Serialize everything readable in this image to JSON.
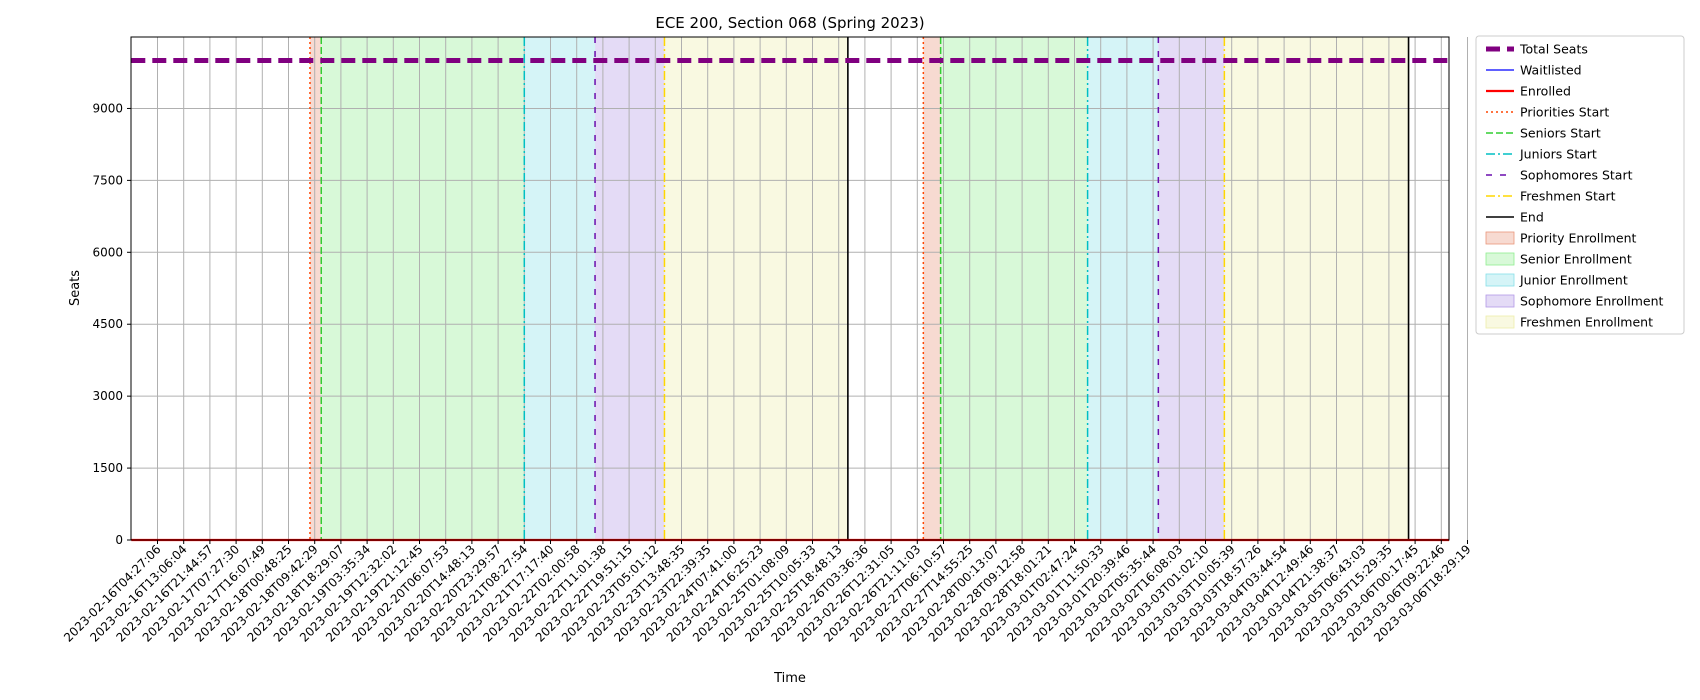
{
  "chart_data": {
    "type": "line",
    "title": "ECE 200, Section 068 (Spring 2023)",
    "xlabel": "Time",
    "ylabel": "Seats",
    "ylim": [
      0,
      10500
    ],
    "yticks": [
      0,
      1500,
      3000,
      4500,
      6000,
      7500,
      9000
    ],
    "grid": true,
    "legend_position": "outside-right",
    "x_ticks": [
      "2023-02-16T04:27:06",
      "2023-02-16T13:06:04",
      "2023-02-16T21:44:57",
      "2023-02-17T07:27:30",
      "2023-02-17T16:07:49",
      "2023-02-18T00:48:25",
      "2023-02-18T09:42:29",
      "2023-02-18T18:29:07",
      "2023-02-19T03:35:34",
      "2023-02-19T12:32:02",
      "2023-02-19T21:12:45",
      "2023-02-20T06:07:53",
      "2023-02-20T14:48:13",
      "2023-02-20T23:29:57",
      "2023-02-21T08:27:54",
      "2023-02-21T17:17:40",
      "2023-02-22T02:00:58",
      "2023-02-22T11:01:38",
      "2023-02-22T19:51:15",
      "2023-02-23T05:01:12",
      "2023-02-23T13:48:35",
      "2023-02-23T22:39:35",
      "2023-02-24T07:41:00",
      "2023-02-24T16:25:23",
      "2023-02-25T01:08:09",
      "2023-02-25T10:05:33",
      "2023-02-25T18:48:13",
      "2023-02-26T03:36:36",
      "2023-02-26T12:31:05",
      "2023-02-26T21:11:03",
      "2023-02-27T06:10:57",
      "2023-02-27T14:55:25",
      "2023-02-28T00:13:07",
      "2023-02-28T09:12:58",
      "2023-02-28T18:01:21",
      "2023-03-01T02:47:24",
      "2023-03-01T11:50:33",
      "2023-03-01T20:39:46",
      "2023-03-02T05:35:44",
      "2023-03-02T16:08:03",
      "2023-03-03T01:02:10",
      "2023-03-03T10:05:39",
      "2023-03-03T18:57:26",
      "2023-03-04T03:44:54",
      "2023-03-04T12:49:46",
      "2023-03-04T21:38:37",
      "2023-03-05T06:43:03",
      "2023-03-05T15:29:35",
      "2023-03-06T00:17:45",
      "2023-03-06T09:22:46",
      "2023-03-06T18:29:19"
    ],
    "x_range_ticks": [
      -1,
      50.4
    ],
    "series": [
      {
        "name": "Total Seats",
        "x_ticks_range": [
          -1,
          50.4
        ],
        "values": [
          10000,
          10000
        ],
        "color": "#800080",
        "style": "dashed-thick"
      },
      {
        "name": "Waitlisted",
        "x_ticks_range": [
          -1,
          50.4
        ],
        "values": [
          0,
          0
        ],
        "color": "#0000ff",
        "style": "solid-thin"
      },
      {
        "name": "Enrolled",
        "x_ticks_range": [
          -1,
          50.4
        ],
        "values": [
          0,
          0
        ],
        "color": "#ff0000",
        "style": "solid-thick"
      }
    ],
    "phase_markers": [
      {
        "name": "Priorities Start",
        "color": "#ff4500",
        "style": "dotted",
        "at_ticks": [
          5.82,
          29.23
        ]
      },
      {
        "name": "Seniors Start",
        "color": "#32cd32",
        "style": "dashed",
        "at_ticks": [
          6.25,
          29.89
        ]
      },
      {
        "name": "Juniors Start",
        "color": "#00bfc4",
        "style": "dashdot",
        "at_ticks": [
          14.0,
          35.5
        ]
      },
      {
        "name": "Sophomores Start",
        "color": "#6a0dad",
        "style": "loose-dash",
        "at_ticks": [
          16.7,
          38.2
        ]
      },
      {
        "name": "Freshmen Start",
        "color": "#ffd700",
        "style": "dashdot",
        "at_ticks": [
          19.35,
          40.72
        ]
      },
      {
        "name": "End",
        "color": "#000000",
        "style": "solid",
        "at_ticks": [
          26.35,
          47.75
        ]
      }
    ],
    "phase_periods": [
      {
        "name": "Priority Enrollment",
        "color": "#e9967a",
        "ranges_ticks": [
          [
            5.82,
            6.25
          ],
          [
            29.23,
            29.89
          ]
        ]
      },
      {
        "name": "Senior Enrollment",
        "color": "#90ee90",
        "ranges_ticks": [
          [
            6.25,
            14.0
          ],
          [
            29.89,
            35.5
          ]
        ]
      },
      {
        "name": "Junior Enrollment",
        "color": "#87e0e8",
        "ranges_ticks": [
          [
            14.0,
            16.7
          ],
          [
            35.5,
            38.2
          ]
        ]
      },
      {
        "name": "Sophomore Enrollment",
        "color": "#b399e6",
        "ranges_ticks": [
          [
            16.7,
            19.35
          ],
          [
            38.2,
            40.72
          ]
        ]
      },
      {
        "name": "Freshmen Enrollment",
        "color": "#eeeeaa",
        "ranges_ticks": [
          [
            19.35,
            26.35
          ],
          [
            40.72,
            47.75
          ]
        ]
      }
    ]
  }
}
